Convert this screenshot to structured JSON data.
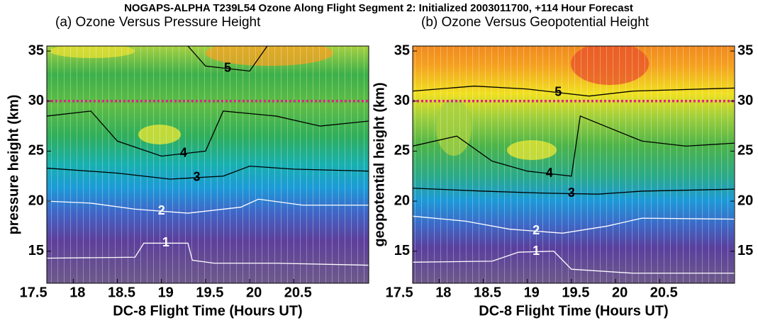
{
  "figure_title": "NOGAPS-ALPHA T239L54 Ozone Along Flight Segment 2: Initialized 2003011700, +114 Hour Forecast",
  "chart_data": [
    {
      "type": "contour",
      "title": "(a) Ozone Versus Pressure Height",
      "x_label": "DC-8 Flight Time (Hours UT)",
      "y_label": "pressure height (km)",
      "xlim": [
        17.7,
        21.35
      ],
      "ylim": [
        11.8,
        35.5
      ],
      "xticks": [
        17.5,
        18.0,
        18.5,
        19.0,
        19.5,
        20.0,
        20.5
      ],
      "yticks": [
        15,
        20,
        25,
        30,
        35
      ],
      "hline": {
        "value": 30,
        "color": "#e0208c"
      },
      "contours": [
        {
          "level": 1,
          "color": "#ffffff",
          "x": [
            17.7,
            18.7,
            18.8,
            19.3,
            19.35,
            19.6,
            20.3,
            21.35
          ],
          "y": [
            14.3,
            14.4,
            15.8,
            15.8,
            14.1,
            13.8,
            13.8,
            13.6
          ]
        },
        {
          "level": 2,
          "color": "#ffffff",
          "x": [
            17.7,
            18.2,
            18.7,
            19.3,
            19.9,
            20.1,
            20.6,
            21.35
          ],
          "y": [
            20.0,
            19.8,
            19.2,
            18.8,
            19.4,
            20.2,
            19.6,
            19.6
          ]
        },
        {
          "level": 3,
          "color": "#000000",
          "x": [
            17.7,
            18.5,
            19.1,
            19.7,
            20.0,
            20.5,
            21.35
          ],
          "y": [
            23.3,
            22.8,
            22.2,
            22.5,
            23.5,
            23.2,
            23.0
          ]
        },
        {
          "level": 4,
          "color": "#000000",
          "x": [
            17.7,
            18.2,
            18.5,
            19.0,
            19.5,
            19.7,
            20.3,
            20.8,
            21.35
          ],
          "y": [
            28.5,
            29.0,
            26.0,
            24.5,
            25.0,
            29.0,
            28.5,
            27.5,
            28.0
          ]
        },
        {
          "level": 5,
          "color": "#000000",
          "x": [
            19.3,
            19.5,
            20.0,
            20.2
          ],
          "y": [
            35.5,
            33.5,
            33.0,
            35.5
          ]
        }
      ]
    },
    {
      "type": "contour",
      "title": "(b) Ozone Versus Geopotential Height",
      "x_label": "DC-8 Flight Time (Hours UT)",
      "y_label": "geopotential height (km)",
      "xlim": [
        17.7,
        21.35
      ],
      "ylim": [
        11.8,
        35.5
      ],
      "xticks": [
        17.5,
        18.0,
        18.5,
        19.0,
        19.5,
        20.0,
        20.5
      ],
      "yticks": [
        15,
        20,
        25,
        30,
        35
      ],
      "y2ticks": [
        15,
        20,
        25,
        30,
        35
      ],
      "hline": {
        "value": 30,
        "color": "#e0208c"
      },
      "contours": [
        {
          "level": 1,
          "color": "#ffffff",
          "x": [
            17.7,
            18.6,
            18.9,
            19.3,
            19.5,
            20.2,
            21.35
          ],
          "y": [
            13.9,
            14.0,
            14.9,
            15.0,
            13.2,
            12.8,
            12.8
          ]
        },
        {
          "level": 2,
          "color": "#ffffff",
          "x": [
            17.7,
            18.3,
            18.8,
            19.4,
            19.9,
            20.3,
            21.35
          ],
          "y": [
            18.5,
            18.0,
            17.2,
            16.8,
            17.5,
            18.3,
            18.2
          ]
        },
        {
          "level": 3,
          "color": "#000000",
          "x": [
            17.7,
            18.5,
            19.2,
            19.8,
            20.3,
            21.35
          ],
          "y": [
            21.3,
            21.0,
            20.8,
            20.7,
            21.0,
            21.2
          ]
        },
        {
          "level": 4,
          "color": "#000000",
          "x": [
            17.7,
            18.2,
            18.6,
            19.0,
            19.5,
            19.6,
            20.3,
            20.8,
            21.35
          ],
          "y": [
            25.5,
            26.5,
            24.0,
            23.0,
            22.5,
            28.5,
            26.0,
            25.5,
            25.8
          ]
        },
        {
          "level": 5,
          "color": "#000000",
          "x": [
            17.7,
            18.4,
            19.0,
            19.7,
            20.2,
            21.35
          ],
          "y": [
            31.0,
            31.5,
            31.2,
            30.5,
            31.0,
            31.3
          ]
        }
      ]
    }
  ]
}
